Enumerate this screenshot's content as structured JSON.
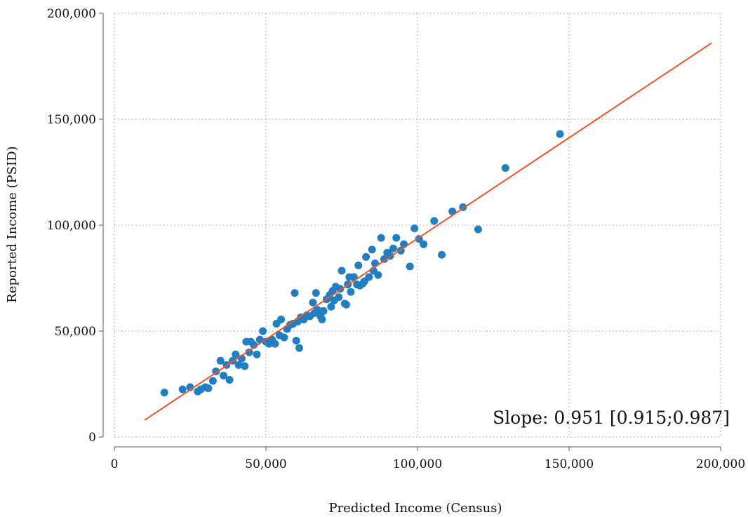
{
  "chart_data": {
    "type": "scatter",
    "title": "",
    "xlabel": "Predicted Income (Census)",
    "ylabel": "Reported Income (PSID)",
    "xlim": [
      0,
      200000
    ],
    "ylim": [
      0,
      200000
    ],
    "x_ticks": [
      0,
      50000,
      100000,
      150000,
      200000
    ],
    "x_tick_labels": [
      "0",
      "50,000",
      "100,000",
      "150,000",
      "200,000"
    ],
    "y_ticks": [
      0,
      50000,
      100000,
      150000,
      200000
    ],
    "y_tick_labels": [
      "0",
      "50,000",
      "100,000",
      "150,000",
      "200,000"
    ],
    "grid": true,
    "annotation": "Slope: 0.951 [0.915;0.987]",
    "colors": {
      "points": "#1f7fc2",
      "fit_line": "#f0532a",
      "grid": "#aaaaaa",
      "axis": "#555555"
    },
    "fit_line": {
      "x": [
        10000,
        197000
      ],
      "y": [
        8000,
        186000
      ]
    },
    "points": [
      [
        16500,
        21000
      ],
      [
        22500,
        22500
      ],
      [
        25000,
        23500
      ],
      [
        27500,
        21500
      ],
      [
        28500,
        22500
      ],
      [
        30000,
        23500
      ],
      [
        31000,
        23000
      ],
      [
        32500,
        26500
      ],
      [
        33500,
        31000
      ],
      [
        35000,
        36000
      ],
      [
        36000,
        29000
      ],
      [
        37000,
        34000
      ],
      [
        38000,
        27000
      ],
      [
        39000,
        36000
      ],
      [
        40000,
        39000
      ],
      [
        41000,
        34000
      ],
      [
        42000,
        37000
      ],
      [
        43000,
        33500
      ],
      [
        43500,
        45000
      ],
      [
        44500,
        40000
      ],
      [
        45000,
        45000
      ],
      [
        46000,
        43500
      ],
      [
        47000,
        39000
      ],
      [
        48000,
        46000
      ],
      [
        49000,
        50000
      ],
      [
        50000,
        45000
      ],
      [
        51000,
        44000
      ],
      [
        52000,
        46000
      ],
      [
        53000,
        44000
      ],
      [
        53500,
        53500
      ],
      [
        54500,
        48000
      ],
      [
        55000,
        55500
      ],
      [
        56000,
        47000
      ],
      [
        57000,
        51000
      ],
      [
        58000,
        53000
      ],
      [
        59000,
        53500
      ],
      [
        59500,
        68000
      ],
      [
        60000,
        45500
      ],
      [
        60500,
        54500
      ],
      [
        61000,
        42000
      ],
      [
        61500,
        56500
      ],
      [
        62500,
        55500
      ],
      [
        63500,
        57500
      ],
      [
        64500,
        57000
      ],
      [
        65500,
        63500
      ],
      [
        66000,
        58500
      ],
      [
        66500,
        68000
      ],
      [
        67000,
        60000
      ],
      [
        68000,
        57000
      ],
      [
        68500,
        55500
      ],
      [
        69000,
        59500
      ],
      [
        70000,
        65000
      ],
      [
        71000,
        67000
      ],
      [
        71500,
        61500
      ],
      [
        72000,
        69000
      ],
      [
        72500,
        64500
      ],
      [
        73000,
        71000
      ],
      [
        74000,
        66000
      ],
      [
        74500,
        70000
      ],
      [
        75000,
        78500
      ],
      [
        76000,
        63000
      ],
      [
        76500,
        62500
      ],
      [
        77000,
        72000
      ],
      [
        77500,
        75500
      ],
      [
        78000,
        68500
      ],
      [
        79000,
        75500
      ],
      [
        80000,
        72000
      ],
      [
        80500,
        81000
      ],
      [
        81000,
        71500
      ],
      [
        82000,
        72500
      ],
      [
        82500,
        73500
      ],
      [
        83000,
        85000
      ],
      [
        84000,
        75500
      ],
      [
        85000,
        88500
      ],
      [
        85500,
        78500
      ],
      [
        86000,
        82000
      ],
      [
        87000,
        76500
      ],
      [
        88000,
        94000
      ],
      [
        89000,
        84000
      ],
      [
        90000,
        87000
      ],
      [
        91000,
        85500
      ],
      [
        92000,
        89000
      ],
      [
        93000,
        94000
      ],
      [
        94500,
        88000
      ],
      [
        95500,
        91000
      ],
      [
        97500,
        80500
      ],
      [
        99000,
        98500
      ],
      [
        100500,
        93500
      ],
      [
        102000,
        91000
      ],
      [
        105500,
        102000
      ],
      [
        108000,
        86000
      ],
      [
        111500,
        106500
      ],
      [
        115000,
        108500
      ],
      [
        120000,
        98000
      ],
      [
        129000,
        127000
      ],
      [
        147000,
        143000
      ]
    ]
  }
}
